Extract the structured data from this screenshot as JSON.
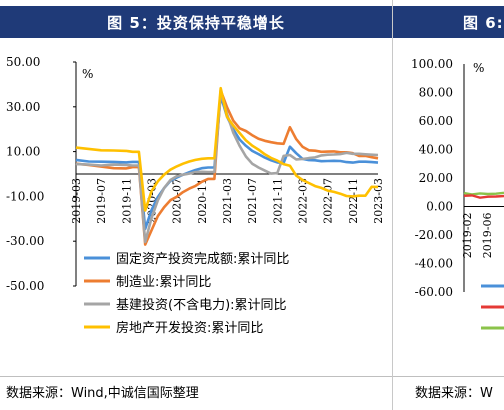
{
  "left": {
    "title": "图 5：投资保持平稳增长",
    "source": "数据来源：Wind,中诚信国际整理",
    "chart_data": {
      "type": "line",
      "unit": "%",
      "yticks": [
        "50.00",
        "30.00",
        "10.00",
        "-10.00",
        "-30.00",
        "-50.00"
      ],
      "ylim": [
        -50,
        50
      ],
      "x_labels": [
        "2019-03",
        "2019-07",
        "2019-11",
        "2020-03",
        "2020-07",
        "2020-11",
        "2021-03",
        "2021-07",
        "2021-11",
        "2022-03",
        "2022-07",
        "2022-11",
        "2023-03"
      ],
      "x_label_index": [
        0,
        4,
        8,
        12,
        16,
        20,
        24,
        28,
        32,
        36,
        40,
        44,
        48
      ],
      "n_points": 49,
      "legend_position": "bottom-inside",
      "series": [
        {
          "name": "固定资产投资完成额:累计同比",
          "color": "#4a90d9",
          "points": [
            [
              0,
              6.3
            ],
            [
              2,
              5.6
            ],
            [
              4,
              5.5
            ],
            [
              6,
              5.4
            ],
            [
              8,
              5.2
            ],
            [
              9,
              5.4
            ],
            [
              10,
              5.4
            ],
            [
              11,
              -24.5
            ],
            [
              12,
              -16.1
            ],
            [
              13,
              -10.3
            ],
            [
              14,
              -6.3
            ],
            [
              15,
              -3.1
            ],
            [
              16,
              -1.6
            ],
            [
              17,
              -0.3
            ],
            [
              18,
              0.8
            ],
            [
              19,
              1.8
            ],
            [
              20,
              2.6
            ],
            [
              21,
              2.9
            ],
            [
              22,
              2.9
            ],
            [
              23,
              35.0
            ],
            [
              24,
              25.6
            ],
            [
              25,
              19.9
            ],
            [
              26,
              15.4
            ],
            [
              27,
              12.6
            ],
            [
              28,
              10.3
            ],
            [
              29,
              8.9
            ],
            [
              30,
              7.3
            ],
            [
              31,
              6.1
            ],
            [
              32,
              5.2
            ],
            [
              33,
              4.9
            ],
            [
              34,
              12.2
            ],
            [
              35,
              9.3
            ],
            [
              36,
              6.8
            ],
            [
              37,
              6.2
            ],
            [
              38,
              6.1
            ],
            [
              39,
              5.7
            ],
            [
              40,
              5.8
            ],
            [
              41,
              5.9
            ],
            [
              42,
              5.8
            ],
            [
              43,
              5.3
            ],
            [
              44,
              5.1
            ],
            [
              45,
              5.5
            ],
            [
              46,
              5.5
            ],
            [
              47,
              5.3
            ],
            [
              48,
              5.1
            ]
          ]
        },
        {
          "name": "制造业:累计同比",
          "color": "#ed7d31",
          "points": [
            [
              0,
              4.6
            ],
            [
              2,
              4.0
            ],
            [
              4,
              3.3
            ],
            [
              6,
              2.6
            ],
            [
              8,
              2.5
            ],
            [
              9,
              3.1
            ],
            [
              10,
              3.1
            ],
            [
              11,
              -31.5
            ],
            [
              12,
              -25.2
            ],
            [
              13,
              -18.8
            ],
            [
              14,
              -14.8
            ],
            [
              15,
              -11.7
            ],
            [
              16,
              -10.2
            ],
            [
              17,
              -8.1
            ],
            [
              18,
              -6.5
            ],
            [
              19,
              -5.3
            ],
            [
              20,
              -3.5
            ],
            [
              21,
              -2.2
            ],
            [
              22,
              -2.2
            ],
            [
              23,
              37.3
            ],
            [
              24,
              29.8
            ],
            [
              25,
              23.8
            ],
            [
              26,
              20.4
            ],
            [
              27,
              19.2
            ],
            [
              28,
              17.3
            ],
            [
              29,
              15.7
            ],
            [
              30,
              14.8
            ],
            [
              31,
              14.2
            ],
            [
              32,
              13.7
            ],
            [
              33,
              13.5
            ],
            [
              34,
              20.9
            ],
            [
              35,
              15.6
            ],
            [
              36,
              12.2
            ],
            [
              37,
              10.6
            ],
            [
              38,
              10.4
            ],
            [
              39,
              9.9
            ],
            [
              40,
              10.0
            ],
            [
              41,
              10.1
            ],
            [
              42,
              9.7
            ],
            [
              43,
              9.7
            ],
            [
              44,
              9.3
            ],
            [
              45,
              8.1
            ],
            [
              46,
              8.1
            ],
            [
              47,
              7.5
            ],
            [
              48,
              7.0
            ]
          ]
        },
        {
          "name": "基建投资(不含电力):累计同比",
          "color": "#a5a5a5",
          "points": [
            [
              0,
              4.4
            ],
            [
              2,
              4.2
            ],
            [
              4,
              3.8
            ],
            [
              6,
              4.2
            ],
            [
              8,
              4.0
            ],
            [
              9,
              3.8
            ],
            [
              10,
              3.8
            ],
            [
              11,
              -30.3
            ],
            [
              12,
              -19.7
            ],
            [
              13,
              -11.8
            ],
            [
              14,
              -6.3
            ],
            [
              15,
              -2.7
            ],
            [
              16,
              -1.0
            ],
            [
              17,
              -0.3
            ],
            [
              18,
              0.2
            ],
            [
              19,
              0.9
            ],
            [
              20,
              1.0
            ],
            [
              21,
              0.9
            ],
            [
              22,
              0.9
            ],
            [
              23,
              36.6
            ],
            [
              24,
              26.8
            ],
            [
              25,
              18.4
            ],
            [
              26,
              12.6
            ],
            [
              27,
              7.8
            ],
            [
              28,
              4.6
            ],
            [
              29,
              2.9
            ],
            [
              30,
              1.5
            ],
            [
              31,
              0.2
            ],
            [
              32,
              0.4
            ],
            [
              33,
              8.1
            ],
            [
              34,
              8.5
            ],
            [
              35,
              6.5
            ],
            [
              36,
              6.7
            ],
            [
              37,
              7.1
            ],
            [
              38,
              7.4
            ],
            [
              39,
              8.3
            ],
            [
              40,
              8.6
            ],
            [
              41,
              8.7
            ],
            [
              42,
              8.9
            ],
            [
              43,
              9.4
            ],
            [
              44,
              9.0
            ],
            [
              45,
              9.0
            ],
            [
              46,
              8.8
            ],
            [
              47,
              8.6
            ],
            [
              48,
              8.5
            ]
          ]
        },
        {
          "name": "房地产开发投资:累计同比",
          "color": "#ffc000",
          "points": [
            [
              0,
              11.8
            ],
            [
              2,
              11.2
            ],
            [
              4,
              10.6
            ],
            [
              6,
              10.5
            ],
            [
              8,
              10.3
            ],
            [
              9,
              9.9
            ],
            [
              10,
              9.9
            ],
            [
              11,
              -16.3
            ],
            [
              12,
              -7.7
            ],
            [
              13,
              -3.3
            ],
            [
              14,
              -0.3
            ],
            [
              15,
              1.9
            ],
            [
              16,
              3.4
            ],
            [
              17,
              4.6
            ],
            [
              18,
              5.6
            ],
            [
              19,
              6.3
            ],
            [
              20,
              6.8
            ],
            [
              21,
              7.0
            ],
            [
              22,
              7.0
            ],
            [
              23,
              38.3
            ],
            [
              24,
              25.6
            ],
            [
              25,
              21.6
            ],
            [
              26,
              18.3
            ],
            [
              27,
              15.0
            ],
            [
              28,
              12.7
            ],
            [
              29,
              10.9
            ],
            [
              30,
              8.8
            ],
            [
              31,
              7.2
            ],
            [
              32,
              6.0
            ],
            [
              33,
              4.4
            ],
            [
              34,
              3.7
            ],
            [
              35,
              -0.7
            ],
            [
              36,
              -2.7
            ],
            [
              37,
              -4.0
            ],
            [
              38,
              -5.4
            ],
            [
              39,
              -6.2
            ],
            [
              40,
              -7.4
            ],
            [
              41,
              -8.0
            ],
            [
              42,
              -8.8
            ],
            [
              43,
              -9.8
            ],
            [
              44,
              -10.0
            ],
            [
              45,
              -9.7
            ],
            [
              46,
              -9.7
            ],
            [
              47,
              -5.7
            ],
            [
              48,
              -5.8
            ]
          ]
        }
      ]
    }
  },
  "right": {
    "title": "图 6:",
    "source": "数据来源：W",
    "chart_data": {
      "type": "line",
      "unit": "%",
      "yticks": [
        "100.00",
        "80.00",
        "60.00",
        "40.00",
        "20.00",
        "0.00",
        "-20.00",
        "-40.00",
        "-60.00"
      ],
      "ylim": [
        -60,
        100
      ],
      "x_labels": [
        "2019-02",
        "2019-06"
      ],
      "legend_colors": [
        "#4a90d9",
        "#e53935",
        "#8bc34a"
      ],
      "series": [
        {
          "color": "#8bc34a",
          "values": [
            9.5,
            8.5,
            9.2,
            8.8,
            9.0,
            9.6
          ]
        },
        {
          "color": "#e53935",
          "values": [
            7.5,
            7.8,
            6.2,
            6.9,
            7.0,
            7.3
          ]
        }
      ]
    }
  }
}
